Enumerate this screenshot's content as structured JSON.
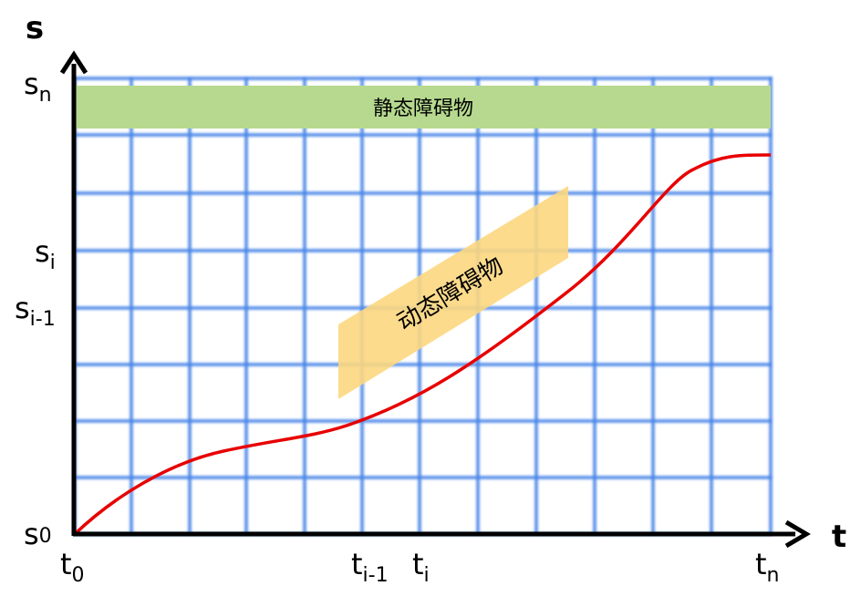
{
  "axes": {
    "y_label": "s",
    "x_label": "t"
  },
  "s_ticks": [
    {
      "base": "s",
      "sub": "n"
    },
    {
      "base": "s",
      "sub": "i"
    },
    {
      "base": "s",
      "sub": "i-1"
    },
    {
      "base": "s",
      "sub": "0"
    }
  ],
  "t_ticks": [
    {
      "base": "t",
      "sub": "0"
    },
    {
      "base": "t",
      "sub": "i-1"
    },
    {
      "base": "t",
      "sub": "i"
    },
    {
      "base": "t",
      "sub": "n"
    }
  ],
  "obstacles": {
    "static_label": "静态障碍物",
    "dynamic_label": "动态障碍物"
  },
  "colors": {
    "grid": "#4a86e8",
    "static_obstacle": "#b6d98f",
    "dynamic_obstacle": "#fcd77f",
    "trajectory": "#e80000",
    "axis": "#000000"
  }
}
